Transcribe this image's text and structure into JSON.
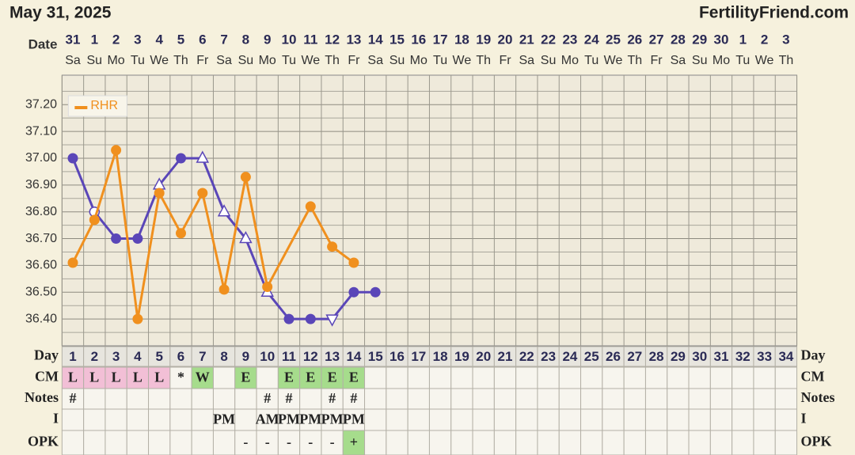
{
  "header": {
    "date": "May 31, 2025",
    "site": "FertilityFriend.com",
    "date_label": "Date"
  },
  "chart_data": {
    "type": "line",
    "dates": [
      "31",
      "1",
      "2",
      "3",
      "4",
      "5",
      "6",
      "7",
      "8",
      "9",
      "10",
      "11",
      "12",
      "13",
      "14",
      "15",
      "16",
      "17",
      "18",
      "19",
      "20",
      "21",
      "22",
      "23",
      "24",
      "25",
      "26",
      "27",
      "28",
      "29",
      "30",
      "1",
      "2",
      "3"
    ],
    "weekdays": [
      "Sa",
      "Su",
      "Mo",
      "Tu",
      "We",
      "Th",
      "Fr",
      "Sa",
      "Su",
      "Mo",
      "Tu",
      "We",
      "Th",
      "Fr",
      "Sa",
      "Su",
      "Mo",
      "Tu",
      "We",
      "Th",
      "Fr",
      "Sa",
      "Su",
      "Mo",
      "Tu",
      "We",
      "Th",
      "Fr",
      "Sa",
      "Su",
      "Mo",
      "Tu",
      "We",
      "Th"
    ],
    "xlim": [
      0.5,
      34.5
    ],
    "ylim": [
      36.3,
      37.31
    ],
    "yticks": [
      {
        "value": 36.4,
        "label": "36.40"
      },
      {
        "value": 36.5,
        "label": "36.50"
      },
      {
        "value": 36.6,
        "label": "36.60"
      },
      {
        "value": 36.7,
        "label": "36.70"
      },
      {
        "value": 36.8,
        "label": "36.80"
      },
      {
        "value": 36.9,
        "label": "36.90"
      },
      {
        "value": 37.0,
        "label": "37.00"
      },
      {
        "value": 37.1,
        "label": "37.10"
      },
      {
        "value": 37.2,
        "label": "37.20"
      }
    ],
    "minor_yticks": [
      36.35,
      36.45,
      36.55,
      36.65,
      36.75,
      36.85,
      36.95,
      37.05,
      37.15,
      37.25
    ],
    "grid": true,
    "legend": "upper left",
    "series": [
      {
        "color": "#5a46b8",
        "x": [
          1,
          2,
          3,
          4,
          5,
          6,
          7,
          8,
          9,
          10,
          11,
          12,
          13,
          14,
          15
        ],
        "values": [
          37.0,
          36.8,
          36.7,
          36.7,
          36.9,
          37.0,
          37.0,
          36.8,
          36.7,
          36.5,
          36.4,
          36.4,
          36.4,
          36.5,
          36.5
        ],
        "markers": [
          "filled",
          "open",
          "filled",
          "filled",
          "triangle",
          "filled",
          "triangle",
          "triangle",
          "triangle",
          "triangle",
          "filled",
          "filled",
          "triangle-down",
          "filled",
          "filled"
        ]
      },
      {
        "name": "RHR",
        "color": "#f0901e",
        "x": [
          1,
          2,
          3,
          4,
          5,
          6,
          7,
          8,
          9,
          10,
          12,
          13,
          14
        ],
        "values": [
          36.61,
          36.77,
          37.03,
          36.4,
          36.87,
          36.72,
          36.87,
          36.51,
          36.93,
          36.52,
          36.82,
          36.67,
          36.61
        ]
      }
    ]
  },
  "table": {
    "rows": [
      {
        "label": "Day",
        "cells": [
          "1",
          "2",
          "3",
          "4",
          "5",
          "6",
          "7",
          "8",
          "9",
          "10",
          "11",
          "12",
          "13",
          "14",
          "15",
          "16",
          "17",
          "18",
          "19",
          "20",
          "21",
          "22",
          "23",
          "24",
          "25",
          "26",
          "27",
          "28",
          "29",
          "30",
          "31",
          "32",
          "33",
          "34"
        ]
      },
      {
        "label": "CM",
        "cells": [
          "L",
          "L",
          "L",
          "L",
          "L",
          "*",
          "W",
          null,
          "E",
          null,
          "E",
          "E",
          "E",
          "E",
          null,
          null,
          null,
          null,
          null,
          null,
          null,
          null,
          null,
          null,
          null,
          null,
          null,
          null,
          null,
          null,
          null,
          null,
          null,
          null
        ]
      },
      {
        "label": "Notes",
        "cells": [
          "#",
          null,
          null,
          null,
          null,
          null,
          null,
          null,
          null,
          "#",
          "#",
          null,
          "#",
          "#",
          null,
          null,
          null,
          null,
          null,
          null,
          null,
          null,
          null,
          null,
          null,
          null,
          null,
          null,
          null,
          null,
          null,
          null,
          null,
          null
        ]
      },
      {
        "label": "I",
        "cells": [
          null,
          null,
          null,
          null,
          null,
          null,
          null,
          "PM",
          null,
          "AM",
          "PM",
          "PM",
          "PM",
          "PM",
          null,
          null,
          null,
          null,
          null,
          null,
          null,
          null,
          null,
          null,
          null,
          null,
          null,
          null,
          null,
          null,
          null,
          null,
          null,
          null
        ]
      },
      {
        "label": "OPK",
        "cells": [
          null,
          null,
          null,
          null,
          null,
          null,
          null,
          null,
          "-",
          "-",
          "-",
          "-",
          "-",
          "+",
          null,
          null,
          null,
          null,
          null,
          null,
          null,
          null,
          null,
          null,
          null,
          null,
          null,
          null,
          null,
          null,
          null,
          null,
          null,
          null
        ]
      }
    ]
  }
}
